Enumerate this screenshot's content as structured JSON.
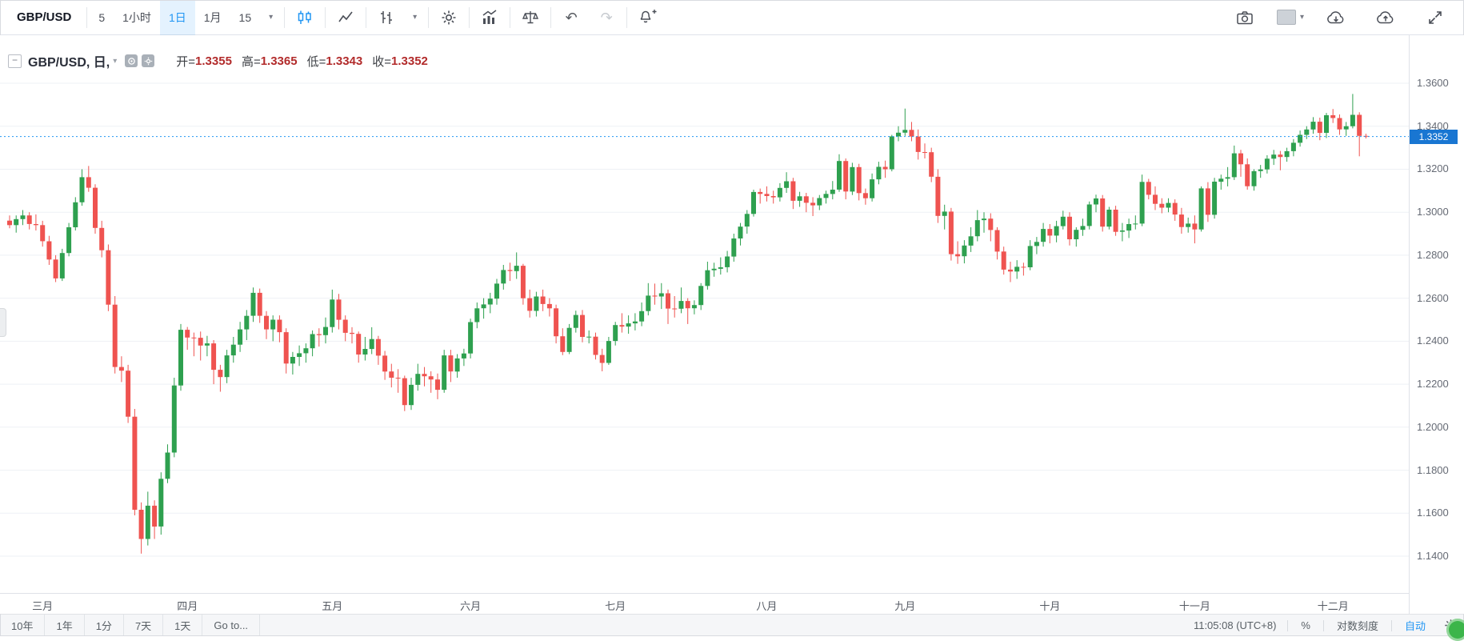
{
  "colors": {
    "accent": "#2196f3",
    "price_tag": "#1976d2",
    "up": "#2ea04f",
    "down": "#ef5350",
    "legend_down": "#b22b2b"
  },
  "icons": {
    "caret": "▾",
    "minus": "−",
    "undo": "↶",
    "redo": "↷"
  },
  "toolbar_top": {
    "symbol": "GBP/USD",
    "intervals": [
      "5",
      "1小时",
      "1日",
      "1月",
      "15"
    ],
    "active_interval": "1日"
  },
  "legend": {
    "title": "GBP/USD, 日,",
    "ohlc": [
      {
        "label": "开=",
        "value": "1.3355"
      },
      {
        "label": "高=",
        "value": "1.3365"
      },
      {
        "label": "低=",
        "value": "1.3343"
      },
      {
        "label": "收=",
        "value": "1.3352"
      }
    ]
  },
  "toolbar_bottom": {
    "ranges": [
      "10年",
      "1年",
      "1分",
      "7天",
      "1天"
    ],
    "goto_label": "Go to...",
    "clock": "11:05:08 (UTC+8)",
    "percent_label": "%",
    "log_label": "对数刻度",
    "auto_label": "自动"
  },
  "chart_data": {
    "type": "candlestick",
    "symbol": "GBP/USD",
    "interval": "日",
    "title": "GBP/USD, 日",
    "last_price": "1.3352",
    "ohlc_current": {
      "open": 1.3355,
      "high": 1.3365,
      "low": 1.3343,
      "close": 1.3352
    },
    "y_ticks": [
      "1.3600",
      "1.3400",
      "1.3200",
      "1.3000",
      "1.2800",
      "1.2600",
      "1.2400",
      "1.2200",
      "1.2000",
      "1.1800",
      "1.1600",
      "1.1400"
    ],
    "y_axis_visible_range": [
      1.1229,
      1.3823
    ],
    "grid": "horizontal-only",
    "colors": {
      "up": "#2ea04f",
      "down": "#ef5350"
    },
    "months": [
      {
        "label": "三月",
        "index": 5
      },
      {
        "label": "四月",
        "index": 27
      },
      {
        "label": "五月",
        "index": 49
      },
      {
        "label": "六月",
        "index": 70
      },
      {
        "label": "七月",
        "index": 92
      },
      {
        "label": "八月",
        "index": 115
      },
      {
        "label": "九月",
        "index": 136
      },
      {
        "label": "十月",
        "index": 158
      },
      {
        "label": "十一月",
        "index": 180
      },
      {
        "label": "十二月",
        "index": 201
      }
    ],
    "candles": [
      [
        1.2961,
        1.2985,
        1.2925,
        1.294
      ],
      [
        1.294,
        1.2985,
        1.2905,
        1.2968
      ],
      [
        1.2968,
        1.301,
        1.294,
        1.2985
      ],
      [
        1.2985,
        1.3,
        1.292,
        1.2945
      ],
      [
        1.2945,
        1.299,
        1.2915,
        1.294
      ],
      [
        1.294,
        1.296,
        1.284,
        1.2865
      ],
      [
        1.2865,
        1.289,
        1.2755,
        1.278
      ],
      [
        1.278,
        1.28,
        1.2675,
        1.2692
      ],
      [
        1.2692,
        1.283,
        1.268,
        1.281
      ],
      [
        1.281,
        1.295,
        1.2795,
        1.293
      ],
      [
        1.293,
        1.307,
        1.2915,
        1.3046
      ],
      [
        1.3046,
        1.32,
        1.303,
        1.3163
      ],
      [
        1.3163,
        1.3215,
        1.3095,
        1.3114
      ],
      [
        1.3114,
        1.313,
        1.29,
        1.2927
      ],
      [
        1.2927,
        1.296,
        1.279,
        1.2823
      ],
      [
        1.2823,
        1.285,
        1.254,
        1.257
      ],
      [
        1.257,
        1.261,
        1.225,
        1.228
      ],
      [
        1.228,
        1.233,
        1.221,
        1.2263
      ],
      [
        1.2263,
        1.229,
        1.202,
        1.2049
      ],
      [
        1.2049,
        1.2085,
        1.159,
        1.1616
      ],
      [
        1.1616,
        1.165,
        1.1412,
        1.148
      ],
      [
        1.148,
        1.17,
        1.145,
        1.1635
      ],
      [
        1.1635,
        1.166,
        1.148,
        1.1538
      ],
      [
        1.1538,
        1.179,
        1.15,
        1.176
      ],
      [
        1.176,
        1.192,
        1.174,
        1.1882
      ],
      [
        1.1882,
        1.223,
        1.186,
        1.2194
      ],
      [
        1.2194,
        1.248,
        1.217,
        1.2453
      ],
      [
        1.2453,
        1.2466,
        1.236,
        1.2417
      ],
      [
        1.2417,
        1.244,
        1.233,
        1.2416
      ],
      [
        1.2416,
        1.2445,
        1.231,
        1.238
      ],
      [
        1.238,
        1.2425,
        1.233,
        1.239
      ],
      [
        1.239,
        1.2405,
        1.22,
        1.2267
      ],
      [
        1.2267,
        1.229,
        1.2165,
        1.2233
      ],
      [
        1.2233,
        1.236,
        1.2205,
        1.2334
      ],
      [
        1.2334,
        1.242,
        1.23,
        1.2384
      ],
      [
        1.2384,
        1.249,
        1.235,
        1.2455
      ],
      [
        1.2455,
        1.2545,
        1.2405,
        1.2518
      ],
      [
        1.2518,
        1.265,
        1.249,
        1.2625
      ],
      [
        1.2625,
        1.2645,
        1.2485,
        1.2518
      ],
      [
        1.2518,
        1.254,
        1.241,
        1.2455
      ],
      [
        1.2455,
        1.252,
        1.24,
        1.25
      ],
      [
        1.25,
        1.252,
        1.2395,
        1.2442
      ],
      [
        1.2442,
        1.246,
        1.225,
        1.2296
      ],
      [
        1.2296,
        1.235,
        1.2245,
        1.2327
      ],
      [
        1.2327,
        1.238,
        1.2285,
        1.2344
      ],
      [
        1.2344,
        1.239,
        1.23,
        1.2367
      ],
      [
        1.2367,
        1.245,
        1.233,
        1.2433
      ],
      [
        1.2433,
        1.246,
        1.2375,
        1.2428
      ],
      [
        1.2428,
        1.251,
        1.239,
        1.2466
      ],
      [
        1.2466,
        1.264,
        1.244,
        1.2594
      ],
      [
        1.2594,
        1.262,
        1.2455,
        1.25
      ],
      [
        1.25,
        1.252,
        1.24,
        1.2439
      ],
      [
        1.2439,
        1.2465,
        1.239,
        1.2434
      ],
      [
        1.2434,
        1.2445,
        1.23,
        1.2338
      ],
      [
        1.2338,
        1.242,
        1.231,
        1.2364
      ],
      [
        1.2364,
        1.2465,
        1.234,
        1.241
      ],
      [
        1.241,
        1.2425,
        1.229,
        1.2333
      ],
      [
        1.2333,
        1.2355,
        1.222,
        1.2259
      ],
      [
        1.2259,
        1.2295,
        1.2185,
        1.223
      ],
      [
        1.223,
        1.227,
        1.216,
        1.2228
      ],
      [
        1.2228,
        1.224,
        1.2075,
        1.2103
      ],
      [
        1.2103,
        1.223,
        1.208,
        1.2197
      ],
      [
        1.2197,
        1.2295,
        1.217,
        1.2248
      ],
      [
        1.2248,
        1.228,
        1.219,
        1.2237
      ],
      [
        1.2237,
        1.226,
        1.216,
        1.2222
      ],
      [
        1.2222,
        1.225,
        1.213,
        1.2174
      ],
      [
        1.2174,
        1.236,
        1.216,
        1.2334
      ],
      [
        1.2334,
        1.236,
        1.221,
        1.2259
      ],
      [
        1.2259,
        1.234,
        1.223,
        1.232
      ],
      [
        1.232,
        1.2365,
        1.2285,
        1.2343
      ],
      [
        1.2343,
        1.2505,
        1.232,
        1.2489
      ],
      [
        1.2489,
        1.258,
        1.246,
        1.2553
      ],
      [
        1.2553,
        1.26,
        1.2505,
        1.2571
      ],
      [
        1.2571,
        1.2625,
        1.253,
        1.2598
      ],
      [
        1.2598,
        1.269,
        1.257,
        1.2668
      ],
      [
        1.2668,
        1.2755,
        1.264,
        1.2731
      ],
      [
        1.2731,
        1.2765,
        1.268,
        1.2726
      ],
      [
        1.2726,
        1.2813,
        1.269,
        1.2751
      ],
      [
        1.2751,
        1.276,
        1.257,
        1.26
      ],
      [
        1.26,
        1.264,
        1.251,
        1.2541
      ],
      [
        1.2541,
        1.263,
        1.2515,
        1.2608
      ],
      [
        1.2608,
        1.264,
        1.254,
        1.2573
      ],
      [
        1.2573,
        1.26,
        1.2515,
        1.2553
      ],
      [
        1.2553,
        1.257,
        1.239,
        1.2423
      ],
      [
        1.2423,
        1.246,
        1.2335,
        1.235
      ],
      [
        1.235,
        1.248,
        1.234,
        1.2462
      ],
      [
        1.2462,
        1.2542,
        1.244,
        1.2522
      ],
      [
        1.2522,
        1.2545,
        1.2395,
        1.242
      ],
      [
        1.242,
        1.245,
        1.239,
        1.2421
      ],
      [
        1.2421,
        1.244,
        1.2315,
        1.2336
      ],
      [
        1.2336,
        1.2365,
        1.226,
        1.2299
      ],
      [
        1.2299,
        1.242,
        1.229,
        1.2401
      ],
      [
        1.2401,
        1.249,
        1.238,
        1.2475
      ],
      [
        1.2475,
        1.253,
        1.244,
        1.2468
      ],
      [
        1.2468,
        1.252,
        1.2435,
        1.2483
      ],
      [
        1.2483,
        1.253,
        1.245,
        1.2492
      ],
      [
        1.2492,
        1.258,
        1.247,
        1.254
      ],
      [
        1.254,
        1.267,
        1.252,
        1.2612
      ],
      [
        1.2612,
        1.2668,
        1.257,
        1.2608
      ],
      [
        1.2608,
        1.267,
        1.255,
        1.2623
      ],
      [
        1.2623,
        1.264,
        1.248,
        1.2552
      ],
      [
        1.2552,
        1.261,
        1.251,
        1.2551
      ],
      [
        1.2551,
        1.265,
        1.253,
        1.2587
      ],
      [
        1.2587,
        1.26,
        1.248,
        1.2553
      ],
      [
        1.2553,
        1.259,
        1.2525,
        1.2568
      ],
      [
        1.2568,
        1.267,
        1.2545,
        1.2657
      ],
      [
        1.2657,
        1.277,
        1.264,
        1.273
      ],
      [
        1.273,
        1.2765,
        1.27,
        1.2737
      ],
      [
        1.2737,
        1.279,
        1.271,
        1.2744
      ],
      [
        1.2744,
        1.282,
        1.272,
        1.2794
      ],
      [
        1.2794,
        1.29,
        1.277,
        1.2878
      ],
      [
        1.2878,
        1.295,
        1.2845,
        1.2933
      ],
      [
        1.2933,
        1.301,
        1.29,
        1.2992
      ],
      [
        1.2992,
        1.3105,
        1.298,
        1.3094
      ],
      [
        1.3094,
        1.311,
        1.304,
        1.3085
      ],
      [
        1.3085,
        1.312,
        1.305,
        1.3075
      ],
      [
        1.3075,
        1.31,
        1.304,
        1.3069
      ],
      [
        1.3069,
        1.3135,
        1.305,
        1.3113
      ],
      [
        1.3113,
        1.3186,
        1.309,
        1.3144
      ],
      [
        1.3144,
        1.316,
        1.3015,
        1.3053
      ],
      [
        1.3053,
        1.3095,
        1.3025,
        1.3074
      ],
      [
        1.3074,
        1.309,
        1.3,
        1.3044
      ],
      [
        1.3044,
        1.307,
        1.2982,
        1.3032
      ],
      [
        1.3032,
        1.308,
        1.301,
        1.3066
      ],
      [
        1.3066,
        1.31,
        1.304,
        1.3085
      ],
      [
        1.3085,
        1.3145,
        1.306,
        1.3105
      ],
      [
        1.3105,
        1.327,
        1.3095,
        1.3238
      ],
      [
        1.3238,
        1.325,
        1.306,
        1.3096
      ],
      [
        1.3096,
        1.323,
        1.308,
        1.321
      ],
      [
        1.321,
        1.3225,
        1.3055,
        1.3089
      ],
      [
        1.3089,
        1.311,
        1.3035,
        1.3065
      ],
      [
        1.3065,
        1.318,
        1.305,
        1.3153
      ],
      [
        1.3153,
        1.3235,
        1.313,
        1.3211
      ],
      [
        1.3211,
        1.324,
        1.316,
        1.32
      ],
      [
        1.32,
        1.336,
        1.319,
        1.3353
      ],
      [
        1.3353,
        1.34,
        1.333,
        1.337
      ],
      [
        1.337,
        1.3482,
        1.3355,
        1.3383
      ],
      [
        1.3383,
        1.342,
        1.333,
        1.3352
      ],
      [
        1.3352,
        1.3385,
        1.3245,
        1.328
      ],
      [
        1.328,
        1.332,
        1.325,
        1.3279
      ],
      [
        1.3279,
        1.33,
        1.314,
        1.3165
      ],
      [
        1.3165,
        1.32,
        1.295,
        1.2983
      ],
      [
        1.2983,
        1.3035,
        1.292,
        1.3003
      ],
      [
        1.3003,
        1.302,
        1.2775,
        1.2805
      ],
      [
        1.2805,
        1.2865,
        1.276,
        1.2795
      ],
      [
        1.2795,
        1.287,
        1.2762,
        1.2845
      ],
      [
        1.2845,
        1.293,
        1.2815,
        1.2888
      ],
      [
        1.2888,
        1.301,
        1.2865,
        1.2963
      ],
      [
        1.2963,
        1.3,
        1.2905,
        1.297
      ],
      [
        1.297,
        1.2995,
        1.2865,
        1.2917
      ],
      [
        1.2917,
        1.293,
        1.278,
        1.2817
      ],
      [
        1.2817,
        1.284,
        1.271,
        1.2733
      ],
      [
        1.2733,
        1.277,
        1.2675,
        1.2724
      ],
      [
        1.2724,
        1.2777,
        1.269,
        1.2746
      ],
      [
        1.2746,
        1.2765,
        1.2705,
        1.2744
      ],
      [
        1.2744,
        1.287,
        1.273,
        1.2843
      ],
      [
        1.2843,
        1.2885,
        1.2805,
        1.2862
      ],
      [
        1.2862,
        1.295,
        1.284,
        1.2922
      ],
      [
        1.2922,
        1.2945,
        1.2855,
        1.2891
      ],
      [
        1.2891,
        1.296,
        1.286,
        1.2935
      ],
      [
        1.2935,
        1.3007,
        1.292,
        1.2979
      ],
      [
        1.2979,
        1.3,
        1.2845,
        1.2874
      ],
      [
        1.2874,
        1.293,
        1.284,
        1.2918
      ],
      [
        1.2918,
        1.297,
        1.289,
        1.2936
      ],
      [
        1.2936,
        1.305,
        1.292,
        1.3036
      ],
      [
        1.3036,
        1.3082,
        1.3,
        1.3064
      ],
      [
        1.3064,
        1.308,
        1.291,
        1.2933
      ],
      [
        1.2933,
        1.3025,
        1.292,
        1.3012
      ],
      [
        1.3012,
        1.303,
        1.289,
        1.2909
      ],
      [
        1.2909,
        1.295,
        1.2865,
        1.2915
      ],
      [
        1.2915,
        1.297,
        1.288,
        1.2945
      ],
      [
        1.2945,
        1.2985,
        1.292,
        1.2947
      ],
      [
        1.2947,
        1.3175,
        1.2935,
        1.3141
      ],
      [
        1.3141,
        1.3155,
        1.306,
        1.3081
      ],
      [
        1.3081,
        1.312,
        1.301,
        1.3039
      ],
      [
        1.3039,
        1.3065,
        1.2995,
        1.3021
      ],
      [
        1.3021,
        1.3065,
        1.3,
        1.3043
      ],
      [
        1.3043,
        1.306,
        1.296,
        1.2989
      ],
      [
        1.2989,
        1.302,
        1.29,
        1.2931
      ],
      [
        1.2931,
        1.2975,
        1.2905,
        1.2947
      ],
      [
        1.2947,
        1.2985,
        1.2855,
        1.292
      ],
      [
        1.292,
        1.312,
        1.291,
        1.3111
      ],
      [
        1.3111,
        1.314,
        1.2955,
        1.2988
      ],
      [
        1.2988,
        1.316,
        1.297,
        1.3142
      ],
      [
        1.3142,
        1.3175,
        1.3105,
        1.3156
      ],
      [
        1.3156,
        1.321,
        1.312,
        1.3163
      ],
      [
        1.3163,
        1.331,
        1.315,
        1.3274
      ],
      [
        1.3274,
        1.329,
        1.3165,
        1.3223
      ],
      [
        1.3223,
        1.325,
        1.3105,
        1.3121
      ],
      [
        1.3121,
        1.32,
        1.31,
        1.3191
      ],
      [
        1.3191,
        1.322,
        1.316,
        1.3199
      ],
      [
        1.3199,
        1.3265,
        1.318,
        1.3249
      ],
      [
        1.3249,
        1.329,
        1.322,
        1.3268
      ],
      [
        1.3268,
        1.3285,
        1.3195,
        1.3257
      ],
      [
        1.3257,
        1.33,
        1.3235,
        1.3284
      ],
      [
        1.3284,
        1.334,
        1.326,
        1.3323
      ],
      [
        1.3323,
        1.338,
        1.3305,
        1.336
      ],
      [
        1.336,
        1.34,
        1.334,
        1.3385
      ],
      [
        1.3385,
        1.3442,
        1.3365,
        1.3421
      ],
      [
        1.3421,
        1.344,
        1.3335,
        1.3369
      ],
      [
        1.3369,
        1.3462,
        1.3345,
        1.3451
      ],
      [
        1.3451,
        1.348,
        1.3415,
        1.3438
      ],
      [
        1.3438,
        1.3455,
        1.336,
        1.3385
      ],
      [
        1.3385,
        1.342,
        1.3355,
        1.34
      ],
      [
        1.34,
        1.355,
        1.339,
        1.3453
      ],
      [
        1.3453,
        1.3465,
        1.326,
        1.3355
      ],
      [
        1.3355,
        1.3365,
        1.3343,
        1.3352
      ]
    ]
  }
}
